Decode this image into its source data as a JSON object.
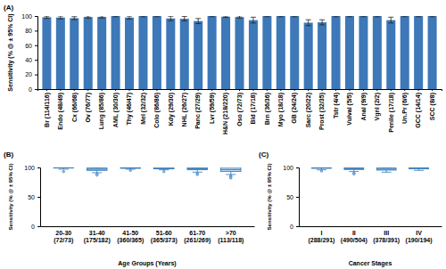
{
  "chart_data": [
    {
      "type": "bar",
      "title": "(A)",
      "y_label": "Sensitivity (% @ ± 95% CI)",
      "categories": [
        "Br (114/116)",
        "Endo (48/49)",
        "Cx (66/68)",
        "Ov (76/77)",
        "Lung (85/86)",
        "AML (30/30)",
        "Thy (46/47)",
        "Mel (32/32)",
        "Colo (86/86)",
        "Kdy (29/30)",
        "NHL (26/27)",
        "Panc (27/29)",
        "Lvr (59/59)",
        "H&N (218/220)",
        "Oso (72/73)",
        "Bld (17/18)",
        "Brn (36/36)",
        "Myo (18/18)",
        "GB (24/24)",
        "Sarc (20/22)",
        "Prost (32/35)",
        "Tstr (4/4)",
        "Vulval (5/5)",
        "Anal (9/9)",
        "Vgnl (2/2)",
        "Penile (17/18)",
        "Un.Pr (6/6)",
        "GCC (14/14)",
        "SCC (8/8)"
      ],
      "values": [
        98.3,
        98.0,
        97.1,
        98.7,
        98.8,
        100,
        97.9,
        100,
        100,
        96.7,
        96.3,
        93.1,
        100,
        99.1,
        98.6,
        94.4,
        100,
        100,
        100,
        90.9,
        91.4,
        100,
        100,
        100,
        100,
        94.4,
        100,
        100,
        100
      ],
      "errors": [
        1.5,
        2,
        2,
        1.5,
        1.5,
        1,
        2,
        1,
        1,
        3,
        3,
        3.5,
        1,
        1,
        1.5,
        4,
        1,
        1,
        1,
        4,
        3.5,
        1,
        1,
        1,
        1,
        4,
        1,
        1,
        1
      ],
      "color": "#3d78b8",
      "ylim": [
        0,
        100
      ],
      "yticks": [
        0,
        20,
        40,
        60,
        80,
        100
      ],
      "grid": false
    },
    {
      "type": "box",
      "title": "(B)",
      "x_label": "Age Groups (Years)",
      "y_label": "Sensitivity (% @ ± 95% CI)",
      "categories": [
        "20-30 (72/73)",
        "31-40 (175/182)",
        "41-50 (360/365)",
        "51-60 (365/373)",
        "61-70 (261/269)",
        ">70 (113/118)"
      ],
      "boxes": [
        {
          "low": 97,
          "q1": 99,
          "median": 100,
          "q3": 100,
          "high": 100,
          "outliers": [
            93
          ]
        },
        {
          "low": 91,
          "q1": 95,
          "median": 97,
          "q3": 99,
          "high": 100,
          "outliers": [
            89,
            87
          ]
        },
        {
          "low": 97,
          "q1": 98.5,
          "median": 99.5,
          "q3": 100,
          "high": 100,
          "outliers": [
            95
          ]
        },
        {
          "low": 96,
          "q1": 97.5,
          "median": 98.5,
          "q3": 100,
          "high": 100,
          "outliers": [
            93
          ]
        },
        {
          "low": 92,
          "q1": 96,
          "median": 97.5,
          "q3": 99.5,
          "high": 100,
          "outliers": [
            90,
            88
          ]
        },
        {
          "low": 88,
          "q1": 93,
          "median": 96.5,
          "q3": 100,
          "high": 100,
          "outliers": [
            86,
            84,
            82
          ]
        }
      ],
      "color": "#2e75b6",
      "ylim": [
        0,
        100
      ],
      "yticks": [
        0,
        50,
        100
      ],
      "grid": false
    },
    {
      "type": "box",
      "title": "(C)",
      "x_label": "Cancer Stages",
      "y_label": "Sensitivity (% @ ± 95% CI)",
      "categories": [
        "I (288/291)",
        "II (490/504)",
        "III (378/391)",
        "IV (190/194)"
      ],
      "boxes": [
        {
          "low": 96,
          "q1": 98.5,
          "median": 99.5,
          "q3": 100,
          "high": 100,
          "outliers": [
            94
          ]
        },
        {
          "low": 93,
          "q1": 96.5,
          "median": 98,
          "q3": 99.5,
          "high": 100,
          "outliers": [
            90,
            89
          ]
        },
        {
          "low": 92,
          "q1": 95.5,
          "median": 97,
          "q3": 99,
          "high": 100,
          "outliers": []
        },
        {
          "low": 95,
          "q1": 97.5,
          "median": 99,
          "q3": 100,
          "high": 100,
          "outliers": []
        }
      ],
      "color": "#2e75b6",
      "ylim": [
        0,
        100
      ],
      "yticks": [
        0,
        50,
        100
      ],
      "grid": false
    }
  ]
}
